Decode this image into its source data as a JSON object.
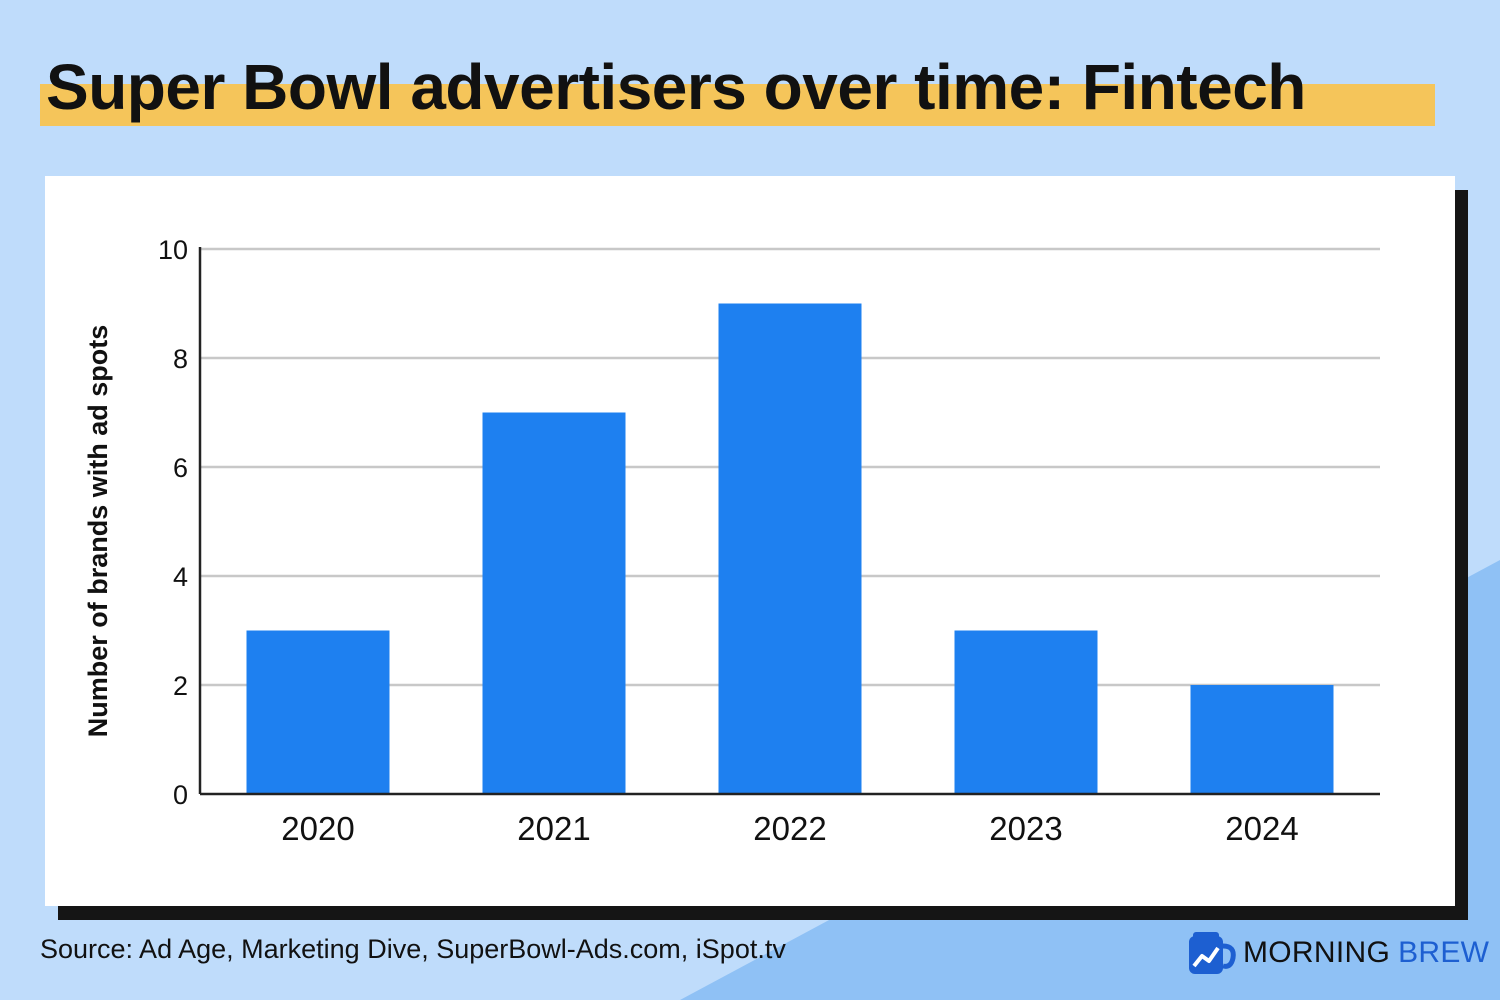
{
  "title": "Super Bowl advertisers over time: Fintech",
  "source": "Source: Ad Age, Marketing Dive, SuperBowl-Ads.com, iSpot.tv",
  "logo": {
    "word1": "MORNING",
    "word2": "BREW",
    "icon": "coffee-mug-chart-icon"
  },
  "colors": {
    "background": "#bfdcfb",
    "highlight": "#f5c55a",
    "bar": "#1e80f0",
    "accent_blue": "#1d5fd1"
  },
  "chart_data": {
    "type": "bar",
    "categories": [
      "2020",
      "2021",
      "2022",
      "2023",
      "2024"
    ],
    "values": [
      3,
      7,
      9,
      3,
      2
    ],
    "title": "Super Bowl advertisers over time: Fintech",
    "xlabel": "",
    "ylabel": "Number of brands with ad spots",
    "ylim": [
      0,
      10
    ],
    "yticks": [
      0,
      2,
      4,
      6,
      8,
      10
    ],
    "grid": true,
    "legend": "none"
  }
}
